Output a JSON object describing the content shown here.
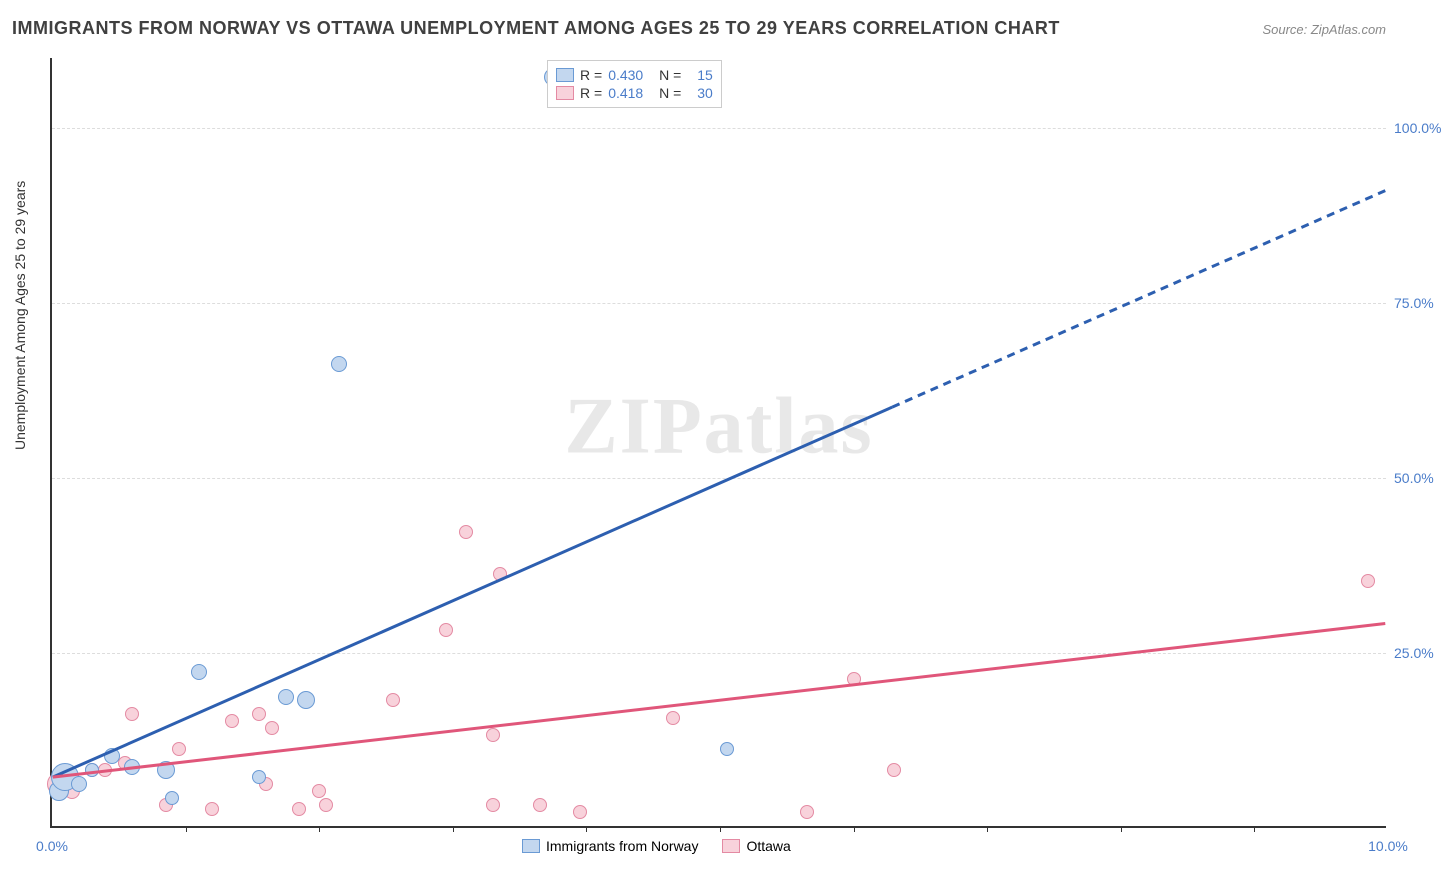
{
  "title": "IMMIGRANTS FROM NORWAY VS OTTAWA UNEMPLOYMENT AMONG AGES 25 TO 29 YEARS CORRELATION CHART",
  "source": "Source: ZipAtlas.com",
  "ylabel": "Unemployment Among Ages 25 to 29 years",
  "watermark": "ZIPatlas",
  "chart": {
    "type": "scatter",
    "xlim": [
      0,
      10
    ],
    "ylim": [
      0,
      110
    ],
    "xtick_labels": [
      "0.0%",
      "10.0%"
    ],
    "xtick_positions": [
      0,
      10
    ],
    "xminor_ticks": [
      1,
      2,
      3,
      4,
      5,
      6,
      7,
      8,
      9
    ],
    "ytick_labels": [
      "25.0%",
      "50.0%",
      "75.0%",
      "100.0%"
    ],
    "ytick_positions": [
      25,
      50,
      75,
      100
    ],
    "grid_color": "#dddddd",
    "background_color": "#ffffff",
    "axis_color": "#333333"
  },
  "series_blue": {
    "label": "Immigrants from Norway",
    "fill": "#c3d7ef",
    "stroke": "#6a9ad4",
    "line_color": "#2d5fb0",
    "R": "0.430",
    "N": "15",
    "trend": {
      "x1": 0,
      "y1": 7,
      "x2_solid": 6.3,
      "y2_solid": 60,
      "x2_dash": 10,
      "y2_dash": 91
    },
    "points": [
      {
        "x": 0.05,
        "y": 5,
        "r": 10
      },
      {
        "x": 0.1,
        "y": 7,
        "r": 14
      },
      {
        "x": 0.2,
        "y": 6,
        "r": 8
      },
      {
        "x": 0.3,
        "y": 8,
        "r": 7
      },
      {
        "x": 0.45,
        "y": 10,
        "r": 8
      },
      {
        "x": 0.6,
        "y": 8.5,
        "r": 8
      },
      {
        "x": 0.85,
        "y": 8,
        "r": 9
      },
      {
        "x": 0.9,
        "y": 4,
        "r": 7
      },
      {
        "x": 1.1,
        "y": 22,
        "r": 8
      },
      {
        "x": 1.55,
        "y": 7,
        "r": 7
      },
      {
        "x": 1.75,
        "y": 18.5,
        "r": 8
      },
      {
        "x": 1.9,
        "y": 18,
        "r": 9
      },
      {
        "x": 2.15,
        "y": 66,
        "r": 8
      },
      {
        "x": 3.75,
        "y": 107,
        "r": 9
      },
      {
        "x": 5.05,
        "y": 11,
        "r": 7
      }
    ]
  },
  "series_pink": {
    "label": "Ottawa",
    "fill": "#f8d2db",
    "stroke": "#e48aa3",
    "line_color": "#e0567a",
    "R": "0.418",
    "N": "30",
    "trend": {
      "x1": 0,
      "y1": 7,
      "x2": 10,
      "y2": 29
    },
    "points": [
      {
        "x": 0.05,
        "y": 6,
        "r": 12
      },
      {
        "x": 0.1,
        "y": 7,
        "r": 10
      },
      {
        "x": 0.15,
        "y": 5,
        "r": 8
      },
      {
        "x": 0.3,
        "y": 8,
        "r": 7
      },
      {
        "x": 0.4,
        "y": 8,
        "r": 7
      },
      {
        "x": 0.55,
        "y": 9,
        "r": 7
      },
      {
        "x": 0.6,
        "y": 16,
        "r": 7
      },
      {
        "x": 0.85,
        "y": 3,
        "r": 7
      },
      {
        "x": 0.95,
        "y": 11,
        "r": 7
      },
      {
        "x": 1.2,
        "y": 2.5,
        "r": 7
      },
      {
        "x": 1.35,
        "y": 15,
        "r": 7
      },
      {
        "x": 1.55,
        "y": 16,
        "r": 7
      },
      {
        "x": 1.6,
        "y": 6,
        "r": 7
      },
      {
        "x": 1.65,
        "y": 14,
        "r": 7
      },
      {
        "x": 1.85,
        "y": 2.5,
        "r": 7
      },
      {
        "x": 2.0,
        "y": 5,
        "r": 7
      },
      {
        "x": 2.05,
        "y": 3,
        "r": 7
      },
      {
        "x": 2.55,
        "y": 18,
        "r": 7
      },
      {
        "x": 2.95,
        "y": 28,
        "r": 7
      },
      {
        "x": 3.1,
        "y": 42,
        "r": 7
      },
      {
        "x": 3.3,
        "y": 3,
        "r": 7
      },
      {
        "x": 3.3,
        "y": 13,
        "r": 7
      },
      {
        "x": 3.35,
        "y": 36,
        "r": 7
      },
      {
        "x": 3.65,
        "y": 3,
        "r": 7
      },
      {
        "x": 3.95,
        "y": 2,
        "r": 7
      },
      {
        "x": 4.65,
        "y": 15.5,
        "r": 7
      },
      {
        "x": 5.65,
        "y": 2,
        "r": 7
      },
      {
        "x": 6.0,
        "y": 21,
        "r": 7
      },
      {
        "x": 6.3,
        "y": 8,
        "r": 7
      },
      {
        "x": 9.85,
        "y": 35,
        "r": 7
      }
    ]
  },
  "legend_top": {
    "r_label": "R =",
    "n_label": "N ="
  }
}
